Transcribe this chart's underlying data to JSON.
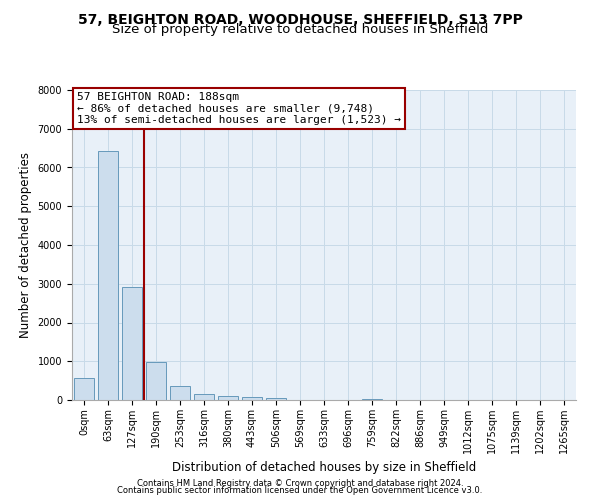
{
  "title1": "57, BEIGHTON ROAD, WOODHOUSE, SHEFFIELD, S13 7PP",
  "title2": "Size of property relative to detached houses in Sheffield",
  "xlabel": "Distribution of detached houses by size in Sheffield",
  "ylabel": "Number of detached properties",
  "bar_color": "#ccdded",
  "bar_edge_color": "#6699bb",
  "grid_color": "#c8dae8",
  "background_color": "#e8f0f8",
  "categories": [
    "0sqm",
    "63sqm",
    "127sqm",
    "190sqm",
    "253sqm",
    "316sqm",
    "380sqm",
    "443sqm",
    "506sqm",
    "569sqm",
    "633sqm",
    "696sqm",
    "759sqm",
    "822sqm",
    "886sqm",
    "949sqm",
    "1012sqm",
    "1075sqm",
    "1139sqm",
    "1202sqm",
    "1265sqm"
  ],
  "values": [
    570,
    6430,
    2920,
    980,
    370,
    165,
    100,
    80,
    50,
    0,
    0,
    0,
    20,
    0,
    0,
    0,
    0,
    0,
    0,
    0,
    0
  ],
  "property_label": "57 BEIGHTON ROAD: 188sqm",
  "annotation_line1": "← 86% of detached houses are smaller (9,748)",
  "annotation_line2": "13% of semi-detached houses are larger (1,523) →",
  "ylim": [
    0,
    8000
  ],
  "yticks": [
    0,
    1000,
    2000,
    3000,
    4000,
    5000,
    6000,
    7000,
    8000
  ],
  "footer1": "Contains HM Land Registry data © Crown copyright and database right 2024.",
  "footer2": "Contains public sector information licensed under the Open Government Licence v3.0.",
  "title_fontsize": 10,
  "subtitle_fontsize": 9.5,
  "tick_fontsize": 7,
  "ylabel_fontsize": 8.5,
  "xlabel_fontsize": 8.5,
  "footer_fontsize": 6,
  "annot_fontsize": 8
}
